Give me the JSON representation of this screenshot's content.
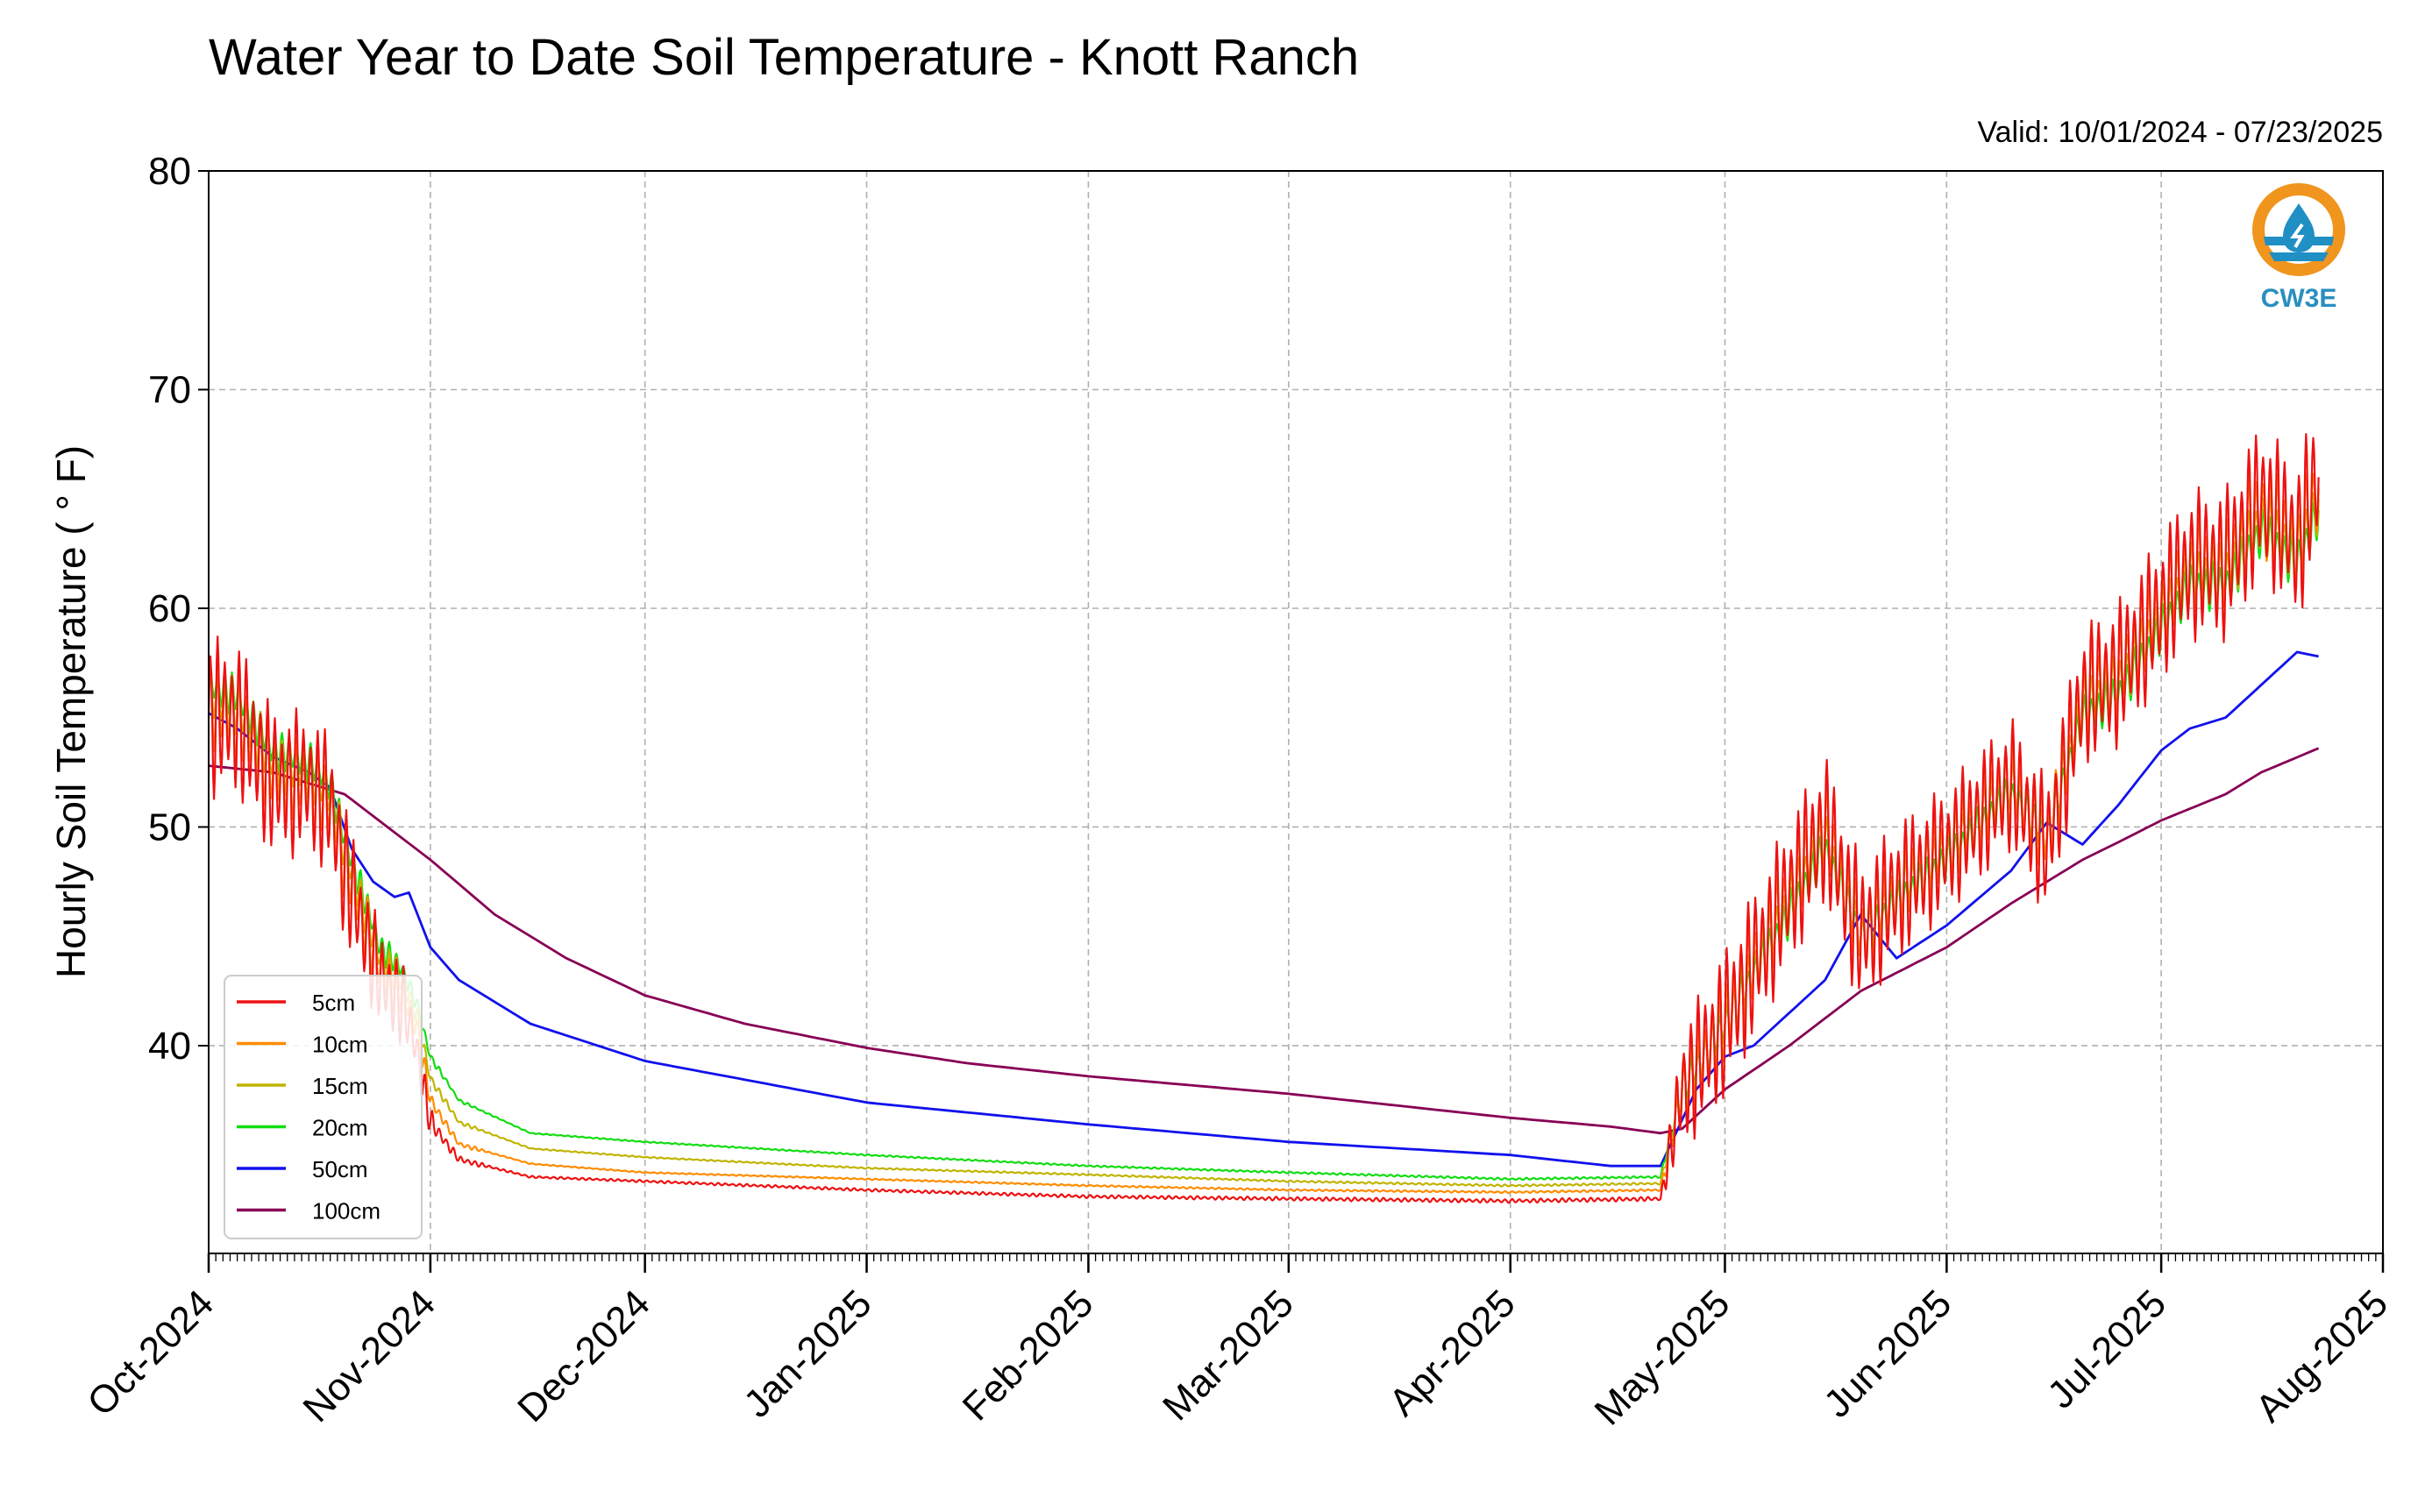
{
  "chart_data": {
    "type": "line",
    "title": "Water Year to Date Soil Temperature - Knott Ranch",
    "subtitle": "Valid: 10/01/2024 - 07/23/2025",
    "ylabel": "Hourly Soil Temperature ( ° F)",
    "xlabel": "",
    "ylim": [
      30.5,
      80
    ],
    "xlim": [
      "2024-10-01",
      "2025-08-01"
    ],
    "yticks": [
      40,
      50,
      60,
      70,
      80
    ],
    "xticks": [
      {
        "date": "2024-10-01",
        "label": "Oct-2024"
      },
      {
        "date": "2024-11-01",
        "label": "Nov-2024"
      },
      {
        "date": "2024-12-01",
        "label": "Dec-2024"
      },
      {
        "date": "2025-01-01",
        "label": "Jan-2025"
      },
      {
        "date": "2025-02-01",
        "label": "Feb-2025"
      },
      {
        "date": "2025-03-01",
        "label": "Mar-2025"
      },
      {
        "date": "2025-04-01",
        "label": "Apr-2025"
      },
      {
        "date": "2025-05-01",
        "label": "May-2025"
      },
      {
        "date": "2025-06-01",
        "label": "Jun-2025"
      },
      {
        "date": "2025-07-01",
        "label": "Jul-2025"
      },
      {
        "date": "2025-08-01",
        "label": "Aug-2025"
      }
    ],
    "grid": true,
    "legend": "bottom-left",
    "series": [
      {
        "name": "5cm",
        "color": "#ee1111",
        "diurnal_amplitude": [
          [
            "2024-10-01",
            7.5
          ],
          [
            "2024-10-20",
            6.5
          ],
          [
            "2024-10-24",
            5
          ],
          [
            "2024-10-28",
            4
          ],
          [
            "2024-10-31",
            2
          ],
          [
            "2024-11-03",
            0.5
          ],
          [
            "2024-11-10",
            0.1
          ],
          [
            "2025-04-22",
            0.2
          ],
          [
            "2025-04-25",
            6
          ],
          [
            "2025-05-01",
            7
          ],
          [
            "2025-05-20",
            7
          ],
          [
            "2025-06-01",
            6
          ],
          [
            "2025-07-01",
            7
          ],
          [
            "2025-07-23",
            7.5
          ]
        ],
        "values": [
          [
            "2024-10-01",
            55
          ],
          [
            "2024-10-05",
            55
          ],
          [
            "2024-10-10",
            52
          ],
          [
            "2024-10-15",
            52
          ],
          [
            "2024-10-18",
            51
          ],
          [
            "2024-10-20",
            48
          ],
          [
            "2024-10-25",
            43
          ],
          [
            "2024-10-28",
            42
          ],
          [
            "2024-10-30",
            40
          ],
          [
            "2024-11-01",
            36.5
          ],
          [
            "2024-11-05",
            34.8
          ],
          [
            "2024-11-15",
            34
          ],
          [
            "2024-12-01",
            33.8
          ],
          [
            "2025-01-01",
            33.4
          ],
          [
            "2025-02-01",
            33.1
          ],
          [
            "2025-03-01",
            33
          ],
          [
            "2025-04-01",
            32.9
          ],
          [
            "2025-04-22",
            33
          ],
          [
            "2025-04-25",
            38
          ],
          [
            "2025-05-01",
            41
          ],
          [
            "2025-05-10",
            47
          ],
          [
            "2025-05-15",
            50
          ],
          [
            "2025-05-20",
            45
          ],
          [
            "2025-05-25",
            47
          ],
          [
            "2025-06-01",
            49
          ],
          [
            "2025-06-10",
            52
          ],
          [
            "2025-06-15",
            49
          ],
          [
            "2025-06-20",
            56
          ],
          [
            "2025-06-25",
            57
          ],
          [
            "2025-07-01",
            60
          ],
          [
            "2025-07-05",
            62
          ],
          [
            "2025-07-10",
            62
          ],
          [
            "2025-07-15",
            65
          ],
          [
            "2025-07-20",
            63
          ],
          [
            "2025-07-23",
            66
          ]
        ]
      },
      {
        "name": "10cm",
        "color": "#ff8c00",
        "diurnal_amplitude": [
          [
            "2024-10-01",
            4.5
          ],
          [
            "2024-10-20",
            4
          ],
          [
            "2024-10-28",
            2.5
          ],
          [
            "2024-10-31",
            1.2
          ],
          [
            "2024-11-03",
            0.4
          ],
          [
            "2024-11-10",
            0.05
          ],
          [
            "2025-04-22",
            0.1
          ],
          [
            "2025-04-25",
            4
          ],
          [
            "2025-05-01",
            4.5
          ],
          [
            "2025-06-01",
            4
          ],
          [
            "2025-07-01",
            4.5
          ],
          [
            "2025-07-23",
            5
          ]
        ],
        "values": [
          [
            "2024-10-01",
            55.5
          ],
          [
            "2024-10-05",
            55
          ],
          [
            "2024-10-10",
            52.5
          ],
          [
            "2024-10-15",
            52
          ],
          [
            "2024-10-18",
            51
          ],
          [
            "2024-10-20",
            48.5
          ],
          [
            "2024-10-25",
            43.5
          ],
          [
            "2024-10-28",
            42.5
          ],
          [
            "2024-10-30",
            41
          ],
          [
            "2024-11-01",
            37.5
          ],
          [
            "2024-11-05",
            35.5
          ],
          [
            "2024-11-15",
            34.6
          ],
          [
            "2024-12-01",
            34.2
          ],
          [
            "2025-01-01",
            33.9
          ],
          [
            "2025-02-01",
            33.6
          ],
          [
            "2025-03-01",
            33.4
          ],
          [
            "2025-04-01",
            33.3
          ],
          [
            "2025-04-22",
            33.4
          ],
          [
            "2025-04-25",
            38
          ],
          [
            "2025-05-01",
            41
          ],
          [
            "2025-05-10",
            47
          ],
          [
            "2025-05-15",
            50
          ],
          [
            "2025-05-20",
            45
          ],
          [
            "2025-05-25",
            47
          ],
          [
            "2025-06-01",
            49
          ],
          [
            "2025-06-10",
            52
          ],
          [
            "2025-06-15",
            49.5
          ],
          [
            "2025-06-20",
            56
          ],
          [
            "2025-06-25",
            57
          ],
          [
            "2025-07-01",
            60
          ],
          [
            "2025-07-05",
            62
          ],
          [
            "2025-07-10",
            62
          ],
          [
            "2025-07-15",
            64.5
          ],
          [
            "2025-07-20",
            63
          ],
          [
            "2025-07-23",
            65.5
          ]
        ]
      },
      {
        "name": "15cm",
        "color": "#c0b400",
        "diurnal_amplitude": [
          [
            "2024-10-01",
            3
          ],
          [
            "2024-10-20",
            2.5
          ],
          [
            "2024-10-28",
            1.6
          ],
          [
            "2024-10-31",
            0.8
          ],
          [
            "2024-11-03",
            0.3
          ],
          [
            "2024-11-10",
            0.05
          ],
          [
            "2025-04-22",
            0.1
          ],
          [
            "2025-04-25",
            2.8
          ],
          [
            "2025-05-01",
            3
          ],
          [
            "2025-06-01",
            2.8
          ],
          [
            "2025-07-01",
            3
          ],
          [
            "2025-07-23",
            3.2
          ]
        ],
        "values": [
          [
            "2024-10-01",
            56
          ],
          [
            "2024-10-05",
            55.5
          ],
          [
            "2024-10-10",
            53
          ],
          [
            "2024-10-15",
            52.5
          ],
          [
            "2024-10-18",
            51.5
          ],
          [
            "2024-10-20",
            49
          ],
          [
            "2024-10-25",
            44
          ],
          [
            "2024-10-28",
            43
          ],
          [
            "2024-10-30",
            41.5
          ],
          [
            "2024-11-01",
            38.5
          ],
          [
            "2024-11-05",
            36.5
          ],
          [
            "2024-11-15",
            35.3
          ],
          [
            "2024-12-01",
            34.9
          ],
          [
            "2025-01-01",
            34.4
          ],
          [
            "2025-02-01",
            34.1
          ],
          [
            "2025-03-01",
            33.8
          ],
          [
            "2025-04-01",
            33.6
          ],
          [
            "2025-04-22",
            33.7
          ],
          [
            "2025-04-25",
            38
          ],
          [
            "2025-05-01",
            41
          ],
          [
            "2025-05-10",
            46.5
          ],
          [
            "2025-05-15",
            49.5
          ],
          [
            "2025-05-20",
            45
          ],
          [
            "2025-05-25",
            47
          ],
          [
            "2025-06-01",
            49
          ],
          [
            "2025-06-10",
            52
          ],
          [
            "2025-06-15",
            49.5
          ],
          [
            "2025-06-20",
            55.5
          ],
          [
            "2025-06-25",
            56.5
          ],
          [
            "2025-07-01",
            59.5
          ],
          [
            "2025-07-05",
            61.5
          ],
          [
            "2025-07-10",
            61.5
          ],
          [
            "2025-07-15",
            64
          ],
          [
            "2025-07-20",
            62.5
          ],
          [
            "2025-07-23",
            65
          ]
        ]
      },
      {
        "name": "20cm",
        "color": "#11dd11",
        "diurnal_amplitude": [
          [
            "2024-10-01",
            2
          ],
          [
            "2024-10-20",
            1.8
          ],
          [
            "2024-10-28",
            1.2
          ],
          [
            "2024-10-31",
            0.6
          ],
          [
            "2024-11-03",
            0.2
          ],
          [
            "2024-11-10",
            0.05
          ],
          [
            "2025-04-22",
            0.1
          ],
          [
            "2025-04-25",
            2
          ],
          [
            "2025-05-01",
            2.2
          ],
          [
            "2025-06-01",
            2
          ],
          [
            "2025-07-01",
            2.2
          ],
          [
            "2025-07-23",
            2.4
          ]
        ],
        "values": [
          [
            "2024-10-01",
            56.5
          ],
          [
            "2024-10-05",
            56
          ],
          [
            "2024-10-10",
            53.5
          ],
          [
            "2024-10-15",
            53
          ],
          [
            "2024-10-18",
            52
          ],
          [
            "2024-10-20",
            49.5
          ],
          [
            "2024-10-25",
            44.5
          ],
          [
            "2024-10-28",
            43.5
          ],
          [
            "2024-10-30",
            42
          ],
          [
            "2024-11-01",
            39.5
          ],
          [
            "2024-11-05",
            37.5
          ],
          [
            "2024-11-15",
            36
          ],
          [
            "2024-12-01",
            35.6
          ],
          [
            "2025-01-01",
            35
          ],
          [
            "2025-02-01",
            34.5
          ],
          [
            "2025-03-01",
            34.2
          ],
          [
            "2025-04-01",
            33.9
          ],
          [
            "2025-04-22",
            34
          ],
          [
            "2025-04-25",
            38
          ],
          [
            "2025-05-01",
            41
          ],
          [
            "2025-05-10",
            46
          ],
          [
            "2025-05-15",
            49
          ],
          [
            "2025-05-20",
            45
          ],
          [
            "2025-05-25",
            46.5
          ],
          [
            "2025-06-01",
            48.5
          ],
          [
            "2025-06-10",
            51.5
          ],
          [
            "2025-06-15",
            49.5
          ],
          [
            "2025-06-20",
            55
          ],
          [
            "2025-06-25",
            56
          ],
          [
            "2025-07-01",
            59
          ],
          [
            "2025-07-05",
            61
          ],
          [
            "2025-07-10",
            61
          ],
          [
            "2025-07-15",
            63.5
          ],
          [
            "2025-07-20",
            62
          ],
          [
            "2025-07-23",
            64.5
          ]
        ]
      },
      {
        "name": "50cm",
        "color": "#1111ee",
        "values": [
          [
            "2024-10-01",
            55.2
          ],
          [
            "2024-10-05",
            54.5
          ],
          [
            "2024-10-10",
            53.2
          ],
          [
            "2024-10-15",
            52.5
          ],
          [
            "2024-10-18",
            51.8
          ],
          [
            "2024-10-21",
            49
          ],
          [
            "2024-10-24",
            47.5
          ],
          [
            "2024-10-27",
            46.8
          ],
          [
            "2024-10-29",
            47
          ],
          [
            "2024-11-01",
            44.5
          ],
          [
            "2024-11-05",
            43
          ],
          [
            "2024-11-15",
            41
          ],
          [
            "2024-12-01",
            39.3
          ],
          [
            "2025-01-01",
            37.4
          ],
          [
            "2025-02-01",
            36.4
          ],
          [
            "2025-03-01",
            35.6
          ],
          [
            "2025-04-01",
            35
          ],
          [
            "2025-04-15",
            34.5
          ],
          [
            "2025-04-22",
            34.5
          ],
          [
            "2025-04-27",
            38
          ],
          [
            "2025-05-01",
            39.5
          ],
          [
            "2025-05-05",
            40
          ],
          [
            "2025-05-10",
            41.5
          ],
          [
            "2025-05-15",
            43
          ],
          [
            "2025-05-20",
            46
          ],
          [
            "2025-05-25",
            44
          ],
          [
            "2025-06-01",
            45.5
          ],
          [
            "2025-06-10",
            48
          ],
          [
            "2025-06-15",
            50.2
          ],
          [
            "2025-06-20",
            49.2
          ],
          [
            "2025-06-25",
            51
          ],
          [
            "2025-07-01",
            53.5
          ],
          [
            "2025-07-05",
            54.5
          ],
          [
            "2025-07-10",
            55
          ],
          [
            "2025-07-15",
            56.5
          ],
          [
            "2025-07-20",
            58
          ],
          [
            "2025-07-23",
            57.8
          ]
        ]
      },
      {
        "name": "100cm",
        "color": "#880055",
        "values": [
          [
            "2024-10-01",
            52.8
          ],
          [
            "2024-10-10",
            52.5
          ],
          [
            "2024-10-20",
            51.5
          ],
          [
            "2024-11-01",
            48.5
          ],
          [
            "2024-11-10",
            46
          ],
          [
            "2024-11-20",
            44
          ],
          [
            "2024-12-01",
            42.3
          ],
          [
            "2024-12-15",
            41
          ],
          [
            "2025-01-01",
            39.9
          ],
          [
            "2025-01-15",
            39.2
          ],
          [
            "2025-02-01",
            38.6
          ],
          [
            "2025-03-01",
            37.8
          ],
          [
            "2025-04-01",
            36.7
          ],
          [
            "2025-04-15",
            36.3
          ],
          [
            "2025-04-22",
            36
          ],
          [
            "2025-04-25",
            36.2
          ],
          [
            "2025-05-01",
            38
          ],
          [
            "2025-05-10",
            40
          ],
          [
            "2025-05-20",
            42.5
          ],
          [
            "2025-06-01",
            44.5
          ],
          [
            "2025-06-10",
            46.5
          ],
          [
            "2025-06-15",
            47.5
          ],
          [
            "2025-06-20",
            48.5
          ],
          [
            "2025-06-25",
            49.3
          ],
          [
            "2025-07-01",
            50.3
          ],
          [
            "2025-07-10",
            51.5
          ],
          [
            "2025-07-15",
            52.5
          ],
          [
            "2025-07-23",
            53.6
          ]
        ]
      }
    ]
  },
  "logo": {
    "text": "CW3E",
    "ring_color": "#f0951e",
    "water_color": "#1f8fc4"
  }
}
